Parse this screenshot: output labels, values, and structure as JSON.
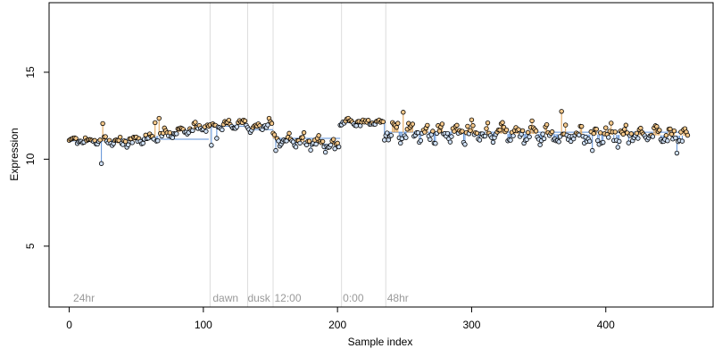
{
  "chart_data": {
    "type": "scatter",
    "title": "",
    "xlabel": "Sample index",
    "ylabel": "Expression",
    "xlim": [
      -15,
      480
    ],
    "ylim": [
      1.5,
      19.0
    ],
    "x_ticks": [
      0,
      100,
      200,
      300,
      400
    ],
    "y_ticks": [
      5,
      10,
      15
    ],
    "grid": false,
    "legend": "none",
    "colors": {
      "point_fill_high": "#f5c88a",
      "point_fill_low": "#cfe0f5",
      "point_edge": "#000000",
      "line_high": "#e0a050",
      "line_low": "#5b8fd6",
      "divider": "#dcdcdc",
      "annotation_text": "#9a9a9a"
    },
    "baseline_segments": [
      {
        "x": [
          0,
          36
        ],
        "y": 11.05
      },
      {
        "x": [
          36,
          104
        ],
        "y": 11.15
      },
      {
        "x": [
          104,
          134
        ],
        "y": 11.9
      },
      {
        "x": [
          134,
          152
        ],
        "y": 11.7
      },
      {
        "x": [
          152,
          202
        ],
        "y": 11.2
      },
      {
        "x": [
          202,
          236
        ],
        "y": 12.1
      },
      {
        "x": [
          236,
          462
        ],
        "y": 11.55
      }
    ],
    "dividers": [
      105,
      133,
      152,
      203,
      236
    ],
    "annotations": [
      {
        "x": 3,
        "text": "24hr"
      },
      {
        "x": 107,
        "text": "dawn"
      },
      {
        "x": 133,
        "text": "dusk"
      },
      {
        "x": 153,
        "text": "12:00"
      },
      {
        "x": 204,
        "text": "0:00"
      },
      {
        "x": 237,
        "text": "48hr"
      }
    ],
    "series": [
      {
        "x_start": 0,
        "x_end": 36,
        "base": 11.05,
        "amp": 0.25,
        "trend": 0.0,
        "outliers": [
          {
            "i": 24,
            "y": 9.75
          },
          {
            "i": 25,
            "y": 12.05
          }
        ]
      },
      {
        "x_start": 36,
        "x_end": 104,
        "base": 10.9,
        "amp": 0.35,
        "trend": 1.0,
        "outliers": [
          {
            "i": 67,
            "y": 12.35
          },
          {
            "i": 64,
            "y": 12.1
          }
        ]
      },
      {
        "x_start": 104,
        "x_end": 134,
        "base": 11.85,
        "amp": 0.3,
        "trend": 0.2,
        "outliers": [
          {
            "i": 106,
            "y": 10.8
          },
          {
            "i": 110,
            "y": 11.2
          }
        ]
      },
      {
        "x_start": 134,
        "x_end": 152,
        "base": 11.75,
        "amp": 0.3,
        "trend": 0.3,
        "outliers": [
          {
            "i": 149,
            "y": 12.35
          },
          {
            "i": 152,
            "y": 10.7
          }
        ]
      },
      {
        "x_start": 152,
        "x_end": 202,
        "base": 11.2,
        "amp": 0.45,
        "trend": -0.4,
        "outliers": [
          {
            "i": 154,
            "y": 10.5
          },
          {
            "i": 198,
            "y": 10.6
          }
        ]
      },
      {
        "x_start": 202,
        "x_end": 236,
        "base": 12.15,
        "amp": 0.25,
        "trend": -0.1,
        "outliers": [
          {
            "i": 235,
            "y": 11.1
          }
        ]
      },
      {
        "x_start": 236,
        "x_end": 462,
        "base": 11.55,
        "amp": 0.65,
        "trend": -0.2,
        "outliers": [
          {
            "i": 249,
            "y": 12.7
          },
          {
            "i": 367,
            "y": 12.75
          },
          {
            "i": 390,
            "y": 10.5
          },
          {
            "i": 453,
            "y": 10.35
          }
        ]
      }
    ]
  }
}
